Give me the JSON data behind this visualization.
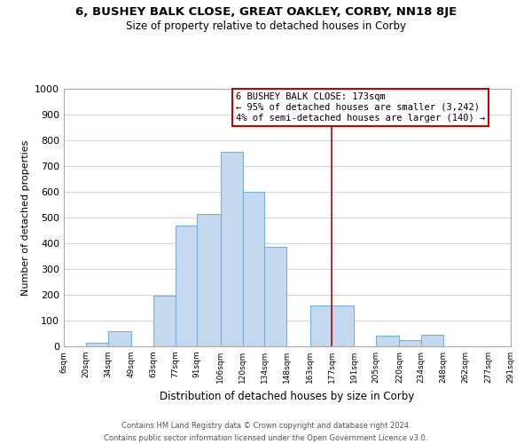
{
  "title": "6, BUSHEY BALK CLOSE, GREAT OAKLEY, CORBY, NN18 8JE",
  "subtitle": "Size of property relative to detached houses in Corby",
  "xlabel": "Distribution of detached houses by size in Corby",
  "ylabel": "Number of detached properties",
  "footer_line1": "Contains HM Land Registry data © Crown copyright and database right 2024.",
  "footer_line2": "Contains public sector information licensed under the Open Government Licence v3.0.",
  "bar_edges": [
    6,
    20,
    34,
    49,
    63,
    77,
    91,
    106,
    120,
    134,
    148,
    163,
    177,
    191,
    205,
    220,
    234,
    248,
    262,
    277,
    291
  ],
  "bar_heights": [
    0,
    15,
    60,
    0,
    195,
    470,
    515,
    755,
    600,
    385,
    0,
    160,
    160,
    0,
    40,
    25,
    45,
    0,
    0,
    0
  ],
  "bar_color": "#c5d9f1",
  "bar_edge_color": "#7bafd4",
  "grid_color": "#d0d8e8",
  "vline_x": 177,
  "vline_color": "#cc0000",
  "annotation_box_text_line1": "6 BUSHEY BALK CLOSE: 173sqm",
  "annotation_box_text_line2": "← 95% of detached houses are smaller (3,242)",
  "annotation_box_text_line3": "4% of semi-detached houses are larger (140) →",
  "annotation_box_edge_color": "#cc0000",
  "xlim": [
    6,
    291
  ],
  "ylim": [
    0,
    1000
  ],
  "yticks": [
    0,
    100,
    200,
    300,
    400,
    500,
    600,
    700,
    800,
    900,
    1000
  ],
  "xtick_labels": [
    "6sqm",
    "20sqm",
    "34sqm",
    "49sqm",
    "63sqm",
    "77sqm",
    "91sqm",
    "106sqm",
    "120sqm",
    "134sqm",
    "148sqm",
    "163sqm",
    "177sqm",
    "191sqm",
    "205sqm",
    "220sqm",
    "234sqm",
    "248sqm",
    "262sqm",
    "277sqm",
    "291sqm"
  ],
  "xtick_positions": [
    6,
    20,
    34,
    49,
    63,
    77,
    91,
    106,
    120,
    134,
    148,
    163,
    177,
    191,
    205,
    220,
    234,
    248,
    262,
    277,
    291
  ],
  "fig_width": 6.0,
  "fig_height": 5.0,
  "dpi": 100
}
